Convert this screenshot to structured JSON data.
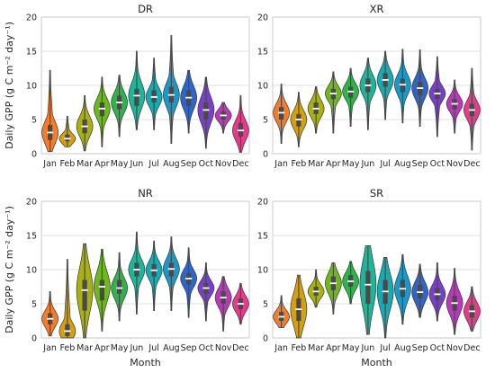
{
  "chart_data": [
    {
      "type": "violin",
      "title": "DR",
      "ylabel": "Daily GPP (g C m⁻² day⁻¹)",
      "xlabel": "",
      "ylim": [
        0,
        20
      ],
      "yticks": [
        0,
        5,
        10,
        15,
        20
      ],
      "categories": [
        "Jan",
        "Feb",
        "Mar",
        "Apr",
        "May",
        "Jun",
        "Jul",
        "Aug",
        "Sep",
        "Oct",
        "Nov",
        "Dec"
      ],
      "series": [
        {
          "min": [
            0.3,
            1.0,
            0.4,
            1.0,
            2.5,
            3.5,
            3.5,
            1.5,
            3.0,
            0.8,
            3.0,
            0.2
          ],
          "q1": [
            2.0,
            1.8,
            3.0,
            5.5,
            6.5,
            7.0,
            7.5,
            7.5,
            7.0,
            5.0,
            5.0,
            2.5
          ],
          "median": [
            3.1,
            2.2,
            4.0,
            6.6,
            7.5,
            8.5,
            8.3,
            8.6,
            8.2,
            6.4,
            5.6,
            3.4
          ],
          "q3": [
            4.2,
            2.8,
            5.0,
            7.5,
            8.5,
            9.5,
            9.3,
            9.8,
            9.3,
            7.5,
            6.2,
            4.5
          ],
          "max": [
            12.2,
            5.5,
            8.5,
            11.2,
            11.5,
            15.0,
            14.0,
            17.3,
            12.2,
            11.2,
            7.5,
            8.5
          ],
          "colors": [
            "#f47c2a",
            "#d4a010",
            "#a8b012",
            "#6cb81e",
            "#2eb44a",
            "#1db69a",
            "#16aab3",
            "#1a98c8",
            "#2f64c8",
            "#7a3fc8",
            "#b83ab8",
            "#e63a8c"
          ]
        }
      ]
    },
    {
      "type": "violin",
      "title": "XR",
      "ylabel": "",
      "xlabel": "",
      "ylim": [
        0,
        20
      ],
      "yticks": [
        0,
        5,
        10,
        15,
        20
      ],
      "categories": [
        "Jan",
        "Feb",
        "Mar",
        "Apr",
        "May",
        "Jun",
        "Jul",
        "Aug",
        "Sep",
        "Oct",
        "Nov",
        "Dec"
      ],
      "series": [
        {
          "min": [
            1.5,
            1.0,
            3.0,
            3.0,
            4.0,
            3.5,
            5.0,
            4.5,
            4.0,
            2.5,
            3.0,
            0.5
          ],
          "q1": [
            5.0,
            4.0,
            5.8,
            8.0,
            8.2,
            9.0,
            9.8,
            9.0,
            8.5,
            8.0,
            6.5,
            5.5
          ],
          "median": [
            6.0,
            5.0,
            6.6,
            8.8,
            9.1,
            10.0,
            10.8,
            10.1,
            9.6,
            8.8,
            7.3,
            6.4
          ],
          "q3": [
            6.8,
            5.8,
            7.5,
            9.5,
            9.8,
            11.0,
            11.8,
            11.0,
            10.5,
            9.5,
            8.0,
            7.3
          ],
          "max": [
            10.2,
            9.0,
            9.8,
            12.0,
            12.5,
            14.0,
            15.0,
            15.3,
            15.2,
            14.2,
            10.8,
            12.5
          ],
          "colors": [
            "#f47c2a",
            "#d4a010",
            "#a8b012",
            "#6cb81e",
            "#2eb44a",
            "#1db69a",
            "#16aab3",
            "#1a98c8",
            "#2f64c8",
            "#7a3fc8",
            "#b83ab8",
            "#e63a8c"
          ]
        }
      ]
    },
    {
      "type": "violin",
      "title": "NR",
      "ylabel": "Daily GPP (g C m⁻² day⁻¹)",
      "xlabel": "Month",
      "ylim": [
        0,
        20
      ],
      "yticks": [
        0,
        5,
        10,
        15,
        20
      ],
      "categories": [
        "Jan",
        "Feb",
        "Mar",
        "Apr",
        "May",
        "Jun",
        "Jul",
        "Aug",
        "Sep",
        "Oct",
        "Nov",
        "Dec"
      ],
      "series": [
        {
          "min": [
            0.3,
            0.0,
            0.0,
            1.0,
            2.5,
            3.5,
            4.0,
            4.0,
            3.0,
            2.5,
            1.0,
            2.0
          ],
          "q1": [
            2.0,
            0.3,
            4.0,
            5.5,
            6.5,
            9.0,
            9.0,
            9.0,
            7.8,
            6.5,
            5.0,
            4.2
          ],
          "median": [
            2.8,
            1.0,
            7.0,
            7.5,
            7.3,
            10.0,
            9.9,
            10.1,
            8.7,
            7.3,
            5.9,
            5.0
          ],
          "q3": [
            3.6,
            2.0,
            8.5,
            8.5,
            8.5,
            11.0,
            10.8,
            11.0,
            9.5,
            8.0,
            6.8,
            5.8
          ],
          "max": [
            6.8,
            11.5,
            13.8,
            13.0,
            12.5,
            15.5,
            14.2,
            14.8,
            13.2,
            11.0,
            9.0,
            8.0
          ],
          "colors": [
            "#f47c2a",
            "#d4a010",
            "#a8b012",
            "#6cb81e",
            "#2eb44a",
            "#1db69a",
            "#16aab3",
            "#1a98c8",
            "#2f64c8",
            "#7a3fc8",
            "#b83ab8",
            "#e63a8c"
          ]
        }
      ]
    },
    {
      "type": "violin",
      "title": "SR",
      "ylabel": "",
      "xlabel": "Month",
      "ylim": [
        0,
        20
      ],
      "yticks": [
        0,
        5,
        10,
        15,
        20
      ],
      "categories": [
        "Jan",
        "Feb",
        "Mar",
        "Apr",
        "May",
        "Jun",
        "Jul",
        "Aug",
        "Sep",
        "Oct",
        "Nov",
        "Dec"
      ],
      "series": [
        {
          "min": [
            1.5,
            0.0,
            4.5,
            3.5,
            5.0,
            0.5,
            0.0,
            2.0,
            3.0,
            2.5,
            0.5,
            1.0
          ],
          "q1": [
            2.5,
            2.5,
            6.2,
            7.0,
            7.5,
            5.0,
            5.0,
            6.0,
            5.8,
            5.5,
            4.0,
            3.0
          ],
          "median": [
            3.1,
            4.2,
            6.8,
            8.0,
            8.3,
            7.8,
            6.8,
            7.2,
            6.7,
            6.4,
            5.1,
            3.9
          ],
          "q3": [
            3.8,
            5.8,
            7.5,
            9.0,
            9.2,
            9.8,
            8.5,
            8.5,
            7.8,
            7.3,
            6.2,
            4.8
          ],
          "max": [
            6.2,
            9.2,
            10.0,
            11.0,
            11.2,
            13.5,
            11.8,
            12.2,
            10.8,
            11.0,
            10.2,
            7.5
          ],
          "colors": [
            "#f47c2a",
            "#d4a010",
            "#a8b012",
            "#6cb81e",
            "#2eb44a",
            "#1db69a",
            "#16aab3",
            "#1a98c8",
            "#2f64c8",
            "#7a3fc8",
            "#b83ab8",
            "#e63a8c"
          ]
        }
      ]
    }
  ]
}
